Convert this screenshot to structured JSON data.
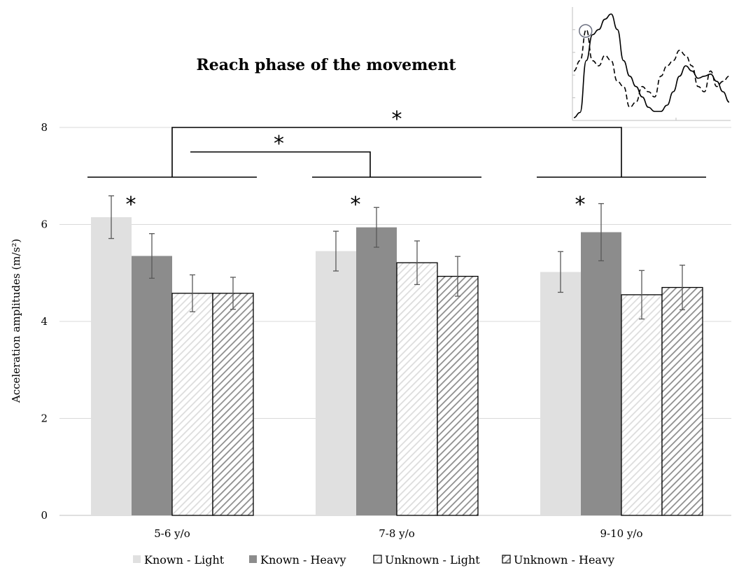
{
  "chart_data": {
    "type": "bar",
    "title": "Reach phase of the movement",
    "ylabel": "Acceleration amplitudes (m/s²)",
    "xlabel": "",
    "ylim": [
      0,
      8
    ],
    "yticks": [
      0,
      2,
      4,
      6,
      8
    ],
    "grid": true,
    "legend": "bottom",
    "categories": [
      "5-6 y/o",
      "7-8 y/o",
      "9-10 y/o"
    ],
    "series": [
      {
        "name": "Known - Light",
        "values": [
          6.15,
          5.45,
          5.02
        ],
        "errors": [
          0.44,
          0.41,
          0.42
        ],
        "color": "#e0e0e0",
        "pattern": "solid"
      },
      {
        "name": "Known - Heavy",
        "values": [
          5.35,
          5.94,
          5.84
        ],
        "errors": [
          0.46,
          0.41,
          0.59
        ],
        "color": "#8c8c8c",
        "pattern": "solid"
      },
      {
        "name": "Unknown - Light",
        "values": [
          4.58,
          5.21,
          4.55
        ],
        "errors": [
          0.38,
          0.45,
          0.5
        ],
        "color": "#d9d9d9",
        "pattern": "hatch-light"
      },
      {
        "name": "Unknown - Heavy",
        "values": [
          4.58,
          4.93,
          4.7
        ],
        "errors": [
          0.33,
          0.41,
          0.46
        ],
        "color": "#8c8c8c",
        "pattern": "hatch-dark"
      }
    ],
    "significance": {
      "group_stars": [
        "*",
        "*",
        "*"
      ],
      "brackets": [
        {
          "from": "5-6 y/o",
          "to": "9-10 y/o",
          "label": "*"
        },
        {
          "from": "5-6 y/o",
          "to": "7-8 y/o",
          "label": "*"
        }
      ]
    },
    "inset": {
      "description_tag": "acceleration-trace-inset",
      "solid_trace": [
        0.0,
        0.05,
        0.55,
        0.8,
        0.85,
        0.95,
        1.0,
        0.85,
        0.55,
        0.4,
        0.3,
        0.2,
        0.1,
        0.06,
        0.06,
        0.12,
        0.25,
        0.4,
        0.5,
        0.45,
        0.38,
        0.4,
        0.42,
        0.35,
        0.25,
        0.15
      ],
      "dashed_trace": [
        0.45,
        0.55,
        0.85,
        0.55,
        0.5,
        0.6,
        0.55,
        0.35,
        0.3,
        0.1,
        0.15,
        0.3,
        0.25,
        0.2,
        0.4,
        0.5,
        0.55,
        0.65,
        0.6,
        0.5,
        0.3,
        0.25,
        0.45,
        0.3,
        0.35,
        0.4
      ],
      "marker_index": 2
    }
  }
}
